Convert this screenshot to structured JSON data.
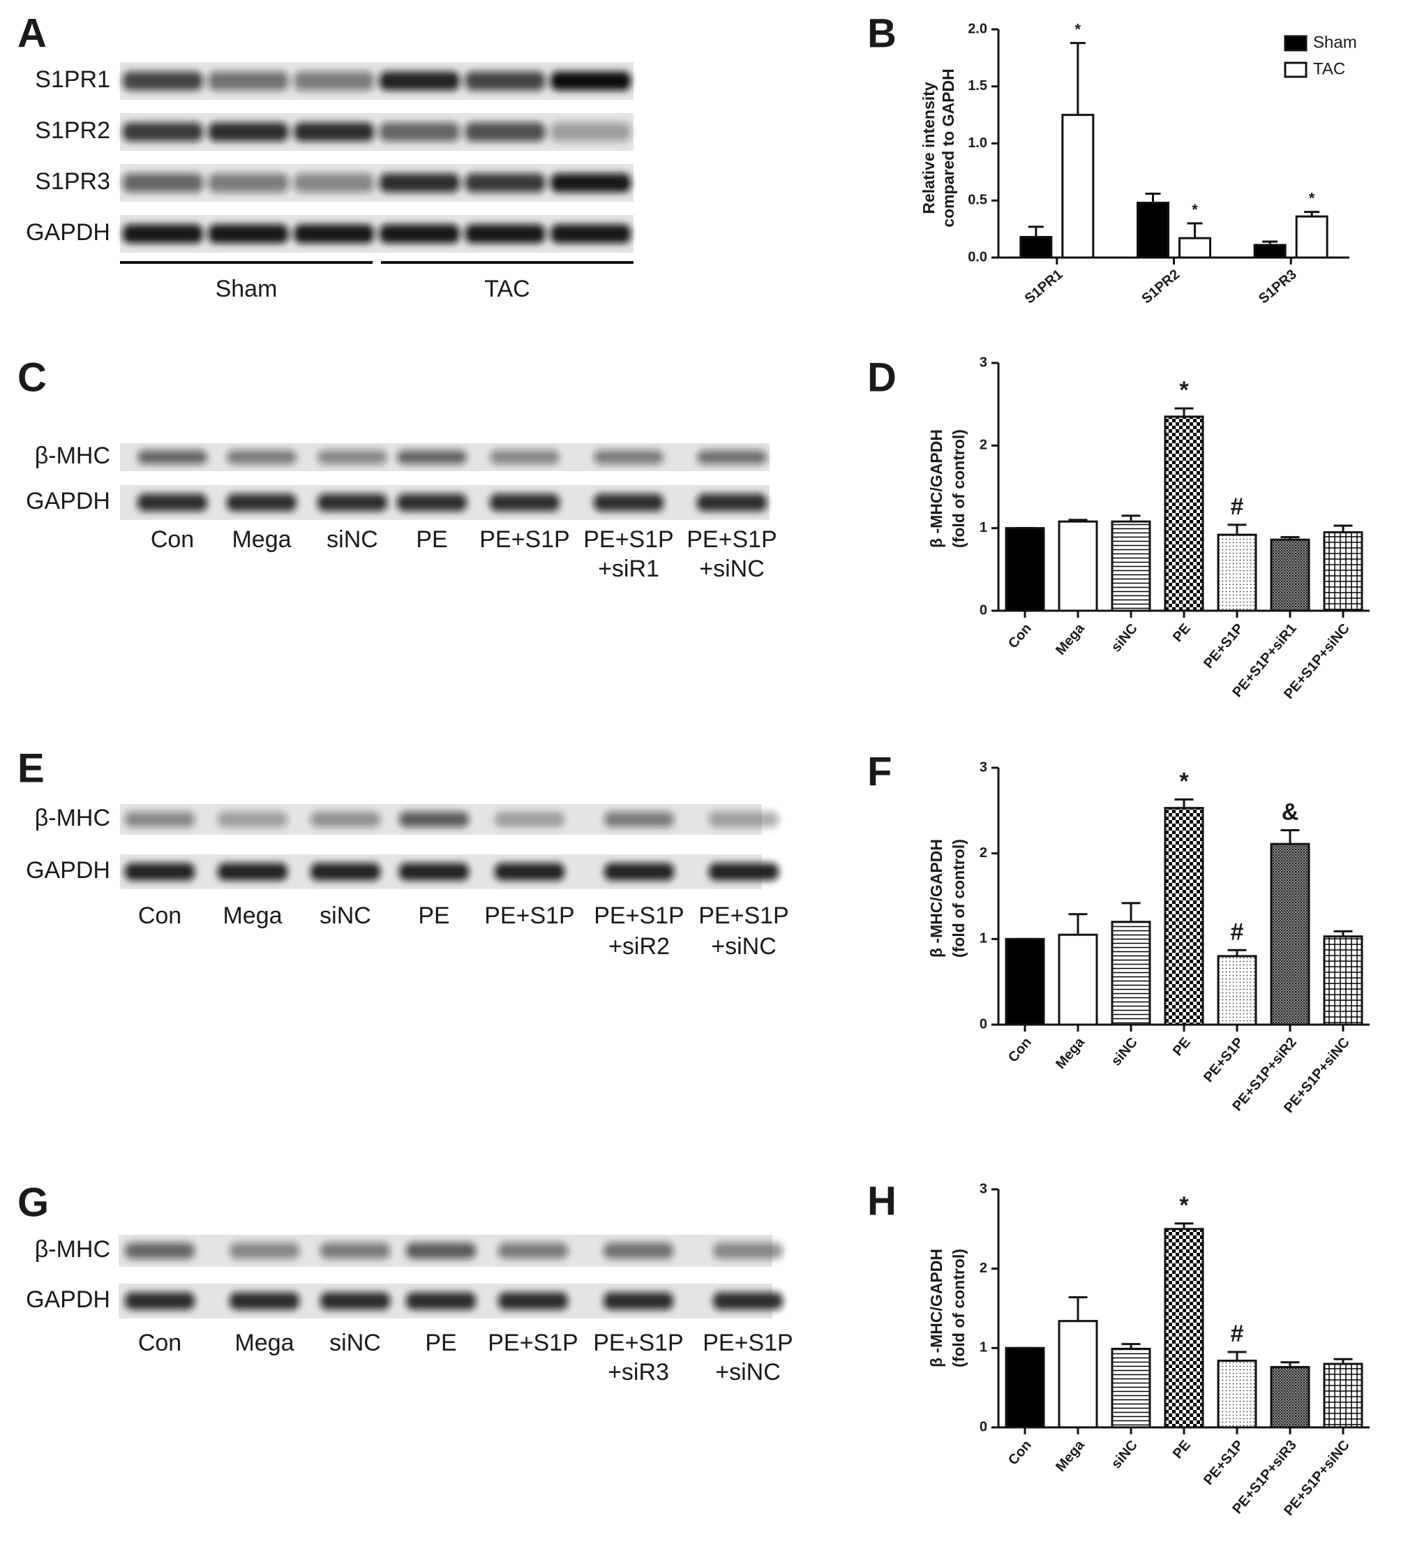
{
  "panels": [
    {
      "label": "A",
      "rows": [
        "S1PR1",
        "S1PR2",
        "S1PR3",
        "GAPDH"
      ],
      "groups": [
        "Sham",
        "TAC"
      ]
    },
    {
      "label": "C",
      "rows": [
        "β-MHC",
        "GAPDH"
      ],
      "lanes": [
        [
          "Con"
        ],
        [
          "Mega"
        ],
        [
          "siNC"
        ],
        [
          "PE"
        ],
        [
          "PE+S1P"
        ],
        [
          "PE+S1P",
          "+siR1"
        ],
        [
          "PE+S1P",
          "+siNC"
        ]
      ]
    },
    {
      "label": "E",
      "rows": [
        "β-MHC",
        "GAPDH"
      ],
      "lanes": [
        [
          "Con"
        ],
        [
          "Mega"
        ],
        [
          "siNC"
        ],
        [
          "PE"
        ],
        [
          "PE+S1P"
        ],
        [
          "PE+S1P",
          "+siR2"
        ],
        [
          "PE+S1P",
          "+siNC"
        ]
      ]
    },
    {
      "label": "G",
      "rows": [
        "β-MHC",
        "GAPDH"
      ],
      "lanes": [
        [
          "Con"
        ],
        [
          "Mega"
        ],
        [
          "siNC"
        ],
        [
          "PE"
        ],
        [
          "PE+S1P"
        ],
        [
          "PE+S1P",
          "+siR3"
        ],
        [
          "PE+S1P",
          "+siNC"
        ]
      ]
    }
  ],
  "chart_data": [
    {
      "type": "bar",
      "label": "B",
      "ylabel": [
        "Relative intensity",
        "compared to GAPDH"
      ],
      "categories": [
        "S1PR1",
        "S1PR2",
        "S1PR3"
      ],
      "series": [
        {
          "name": "Sham",
          "color": "#000000",
          "values": [
            0.18,
            0.48,
            0.11
          ],
          "errors": [
            0.09,
            0.08,
            0.03
          ],
          "annotations": [
            null,
            null,
            null
          ]
        },
        {
          "name": "TAC",
          "color": "#ffffff",
          "values": [
            1.25,
            0.17,
            0.36
          ],
          "errors": [
            0.63,
            0.13,
            0.04
          ],
          "annotations": [
            "*",
            "*",
            "*"
          ]
        }
      ],
      "ylim": [
        0,
        2.0
      ],
      "yticks": [
        {
          "value": 0,
          "label": "0.0"
        },
        {
          "value": 0.5,
          "label": "0.5"
        },
        {
          "value": 1,
          "label": "1.0"
        },
        {
          "value": 1.5,
          "label": "1.5"
        },
        {
          "value": 2,
          "label": "2.0"
        }
      ],
      "legend": "top-right"
    },
    {
      "type": "bar",
      "label": "D",
      "ylabel": [
        "β -MHC/GAPDH",
        "(fold of control)"
      ],
      "categories": [
        "Con",
        "Mega",
        "siNC",
        "PE",
        "PE+S1P",
        "PE+S1P+siR1",
        "PE+S1P+siNC"
      ],
      "values": [
        1.0,
        1.08,
        1.08,
        2.35,
        0.92,
        0.86,
        0.95
      ],
      "errors": [
        0,
        0.02,
        0.07,
        0.1,
        0.12,
        0.03,
        0.08
      ],
      "annotations": [
        null,
        null,
        null,
        "*",
        "#",
        null,
        null
      ],
      "patterns": [
        "solid",
        "empty",
        "hlines",
        "checker",
        "dots",
        "dense",
        "grid"
      ],
      "ylim": [
        0,
        3
      ],
      "yticks": [
        0,
        1,
        2,
        3
      ]
    },
    {
      "type": "bar",
      "label": "F",
      "ylabel": [
        "β -MHC/GAPDH",
        "(fold of control)"
      ],
      "categories": [
        "Con",
        "Mega",
        "siNC",
        "PE",
        "PE+S1P",
        "PE+S1P+siR2",
        "PE+S1P+siNC"
      ],
      "values": [
        1.0,
        1.05,
        1.2,
        2.53,
        0.8,
        2.11,
        1.03
      ],
      "errors": [
        0,
        0.24,
        0.22,
        0.1,
        0.07,
        0.16,
        0.06
      ],
      "annotations": [
        null,
        null,
        null,
        "*",
        "#",
        "&",
        null
      ],
      "patterns": [
        "solid",
        "empty",
        "hlines",
        "checker",
        "dots",
        "dense",
        "grid"
      ],
      "ylim": [
        0,
        3
      ],
      "yticks": [
        0,
        1,
        2,
        3
      ]
    },
    {
      "type": "bar",
      "label": "H",
      "ylabel": [
        "β -MHC/GAPDH",
        "(fold of control)"
      ],
      "categories": [
        "Con",
        "Mega",
        "siNC",
        "PE",
        "PE+S1P",
        "PE+S1P+siR3",
        "PE+S1P+siNC"
      ],
      "values": [
        1.0,
        1.34,
        0.99,
        2.5,
        0.84,
        0.76,
        0.8
      ],
      "errors": [
        0,
        0.3,
        0.06,
        0.07,
        0.11,
        0.06,
        0.06
      ],
      "annotations": [
        null,
        null,
        null,
        "*",
        "#",
        null,
        null
      ],
      "patterns": [
        "solid",
        "empty",
        "hlines",
        "checker",
        "dots",
        "dense",
        "grid"
      ],
      "ylim": [
        0,
        3
      ],
      "yticks": [
        0,
        1,
        2,
        3
      ]
    }
  ]
}
